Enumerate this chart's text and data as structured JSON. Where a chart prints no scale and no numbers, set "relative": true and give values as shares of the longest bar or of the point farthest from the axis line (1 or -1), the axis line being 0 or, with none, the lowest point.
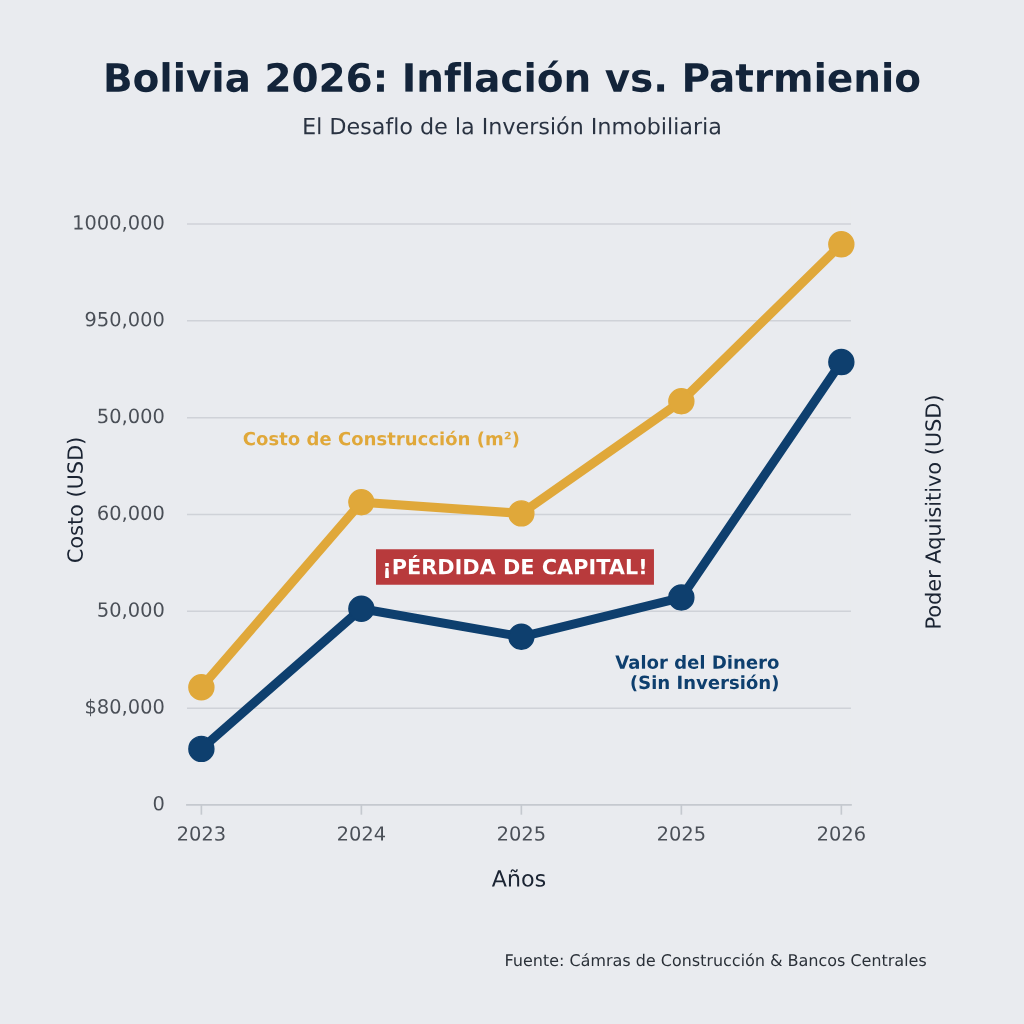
{
  "chart_data": {
    "type": "line",
    "title": "Bolivia 2026: Inflación vs. Patrmienio",
    "subtitle": "El Desaflo de la Inversión Inmobiliaria",
    "xlabel": "Años",
    "ylabel": "Costo (USD)",
    "y2label": "Poder Aquisitivo (USD)",
    "categories": [
      "2023",
      "2024",
      "2025",
      "2025",
      "2026"
    ],
    "relative": true,
    "series": [
      {
        "name": "Costo de Construcción (m²)",
        "color": "#e0a83a",
        "values": [
          0.21,
          0.54,
          0.52,
          0.72,
          1
        ]
      },
      {
        "name": "Valor del Dinero\n(Sin Inversión)",
        "color": "#0e3f6e",
        "values": [
          0.1,
          0.35,
          0.3,
          0.37,
          0.79
        ]
      }
    ],
    "annotations": [
      "1000,000",
      "950,000",
      "50,000",
      "60,000",
      "50,000",
      "$80,000",
      "0",
      "¡PÉRDIDA DE CAPITAL!",
      "Fuente: Cámras de Construcción & Bancos Centrales"
    ],
    "grid": "y",
    "legend": false,
    "marker": "circle",
    "line_style": "solid"
  }
}
